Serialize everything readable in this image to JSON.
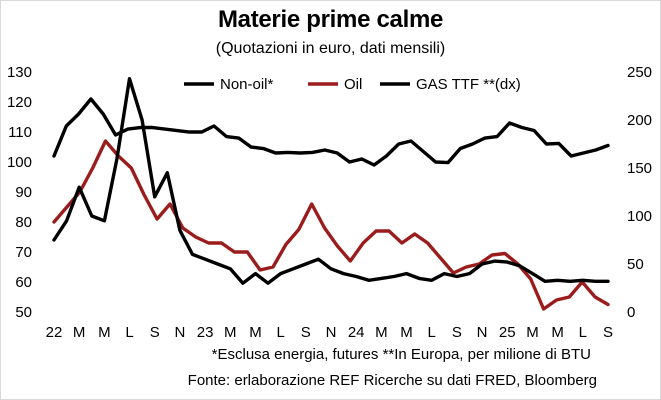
{
  "title": "Materie prime calme",
  "subtitle": "(Quotazioni in euro, dati mensili)",
  "notes": {
    "line1": "*Esclusa energia, futures **In Europa, per milione di BTU",
    "line2": "Fonte: erlaborazione REF Ricerche su dati FRED, Bloomberg"
  },
  "chart_data": {
    "type": "line",
    "x_tick_labels": [
      "22",
      "M",
      "M",
      "L",
      "S",
      "N",
      "23",
      "M",
      "M",
      "L",
      "S",
      "N",
      "24",
      "M",
      "M",
      "L",
      "S",
      "N",
      "25",
      "M",
      "M",
      "L",
      "S"
    ],
    "left_axis": {
      "min": 50,
      "max": 130,
      "ticks": [
        50,
        60,
        70,
        80,
        90,
        100,
        110,
        120,
        130
      ]
    },
    "right_axis": {
      "min": 0,
      "max": 250,
      "ticks": [
        0,
        50,
        100,
        150,
        200,
        250
      ]
    },
    "legend_position": "top",
    "series": [
      {
        "name": "Non-oil*",
        "axis": "left",
        "color": "#000000",
        "values": [
          102,
          112,
          116,
          121,
          116,
          109,
          111,
          111.5,
          111.5,
          111,
          110.5,
          110,
          110,
          112,
          108.5,
          108,
          105,
          104.5,
          103,
          103.2,
          103,
          103.2,
          104,
          103,
          100,
          101,
          99,
          102,
          106,
          107,
          103.5,
          100,
          99.8,
          104.5,
          106,
          108,
          108.5,
          113,
          111.5,
          110.5,
          106,
          106.2,
          102,
          103,
          104,
          105.5
        ]
      },
      {
        "name": "Oil",
        "axis": "left",
        "color": "#9b1c1c",
        "values": [
          80,
          85,
          90,
          98,
          107,
          102,
          98,
          89,
          81,
          86,
          78,
          75,
          73,
          73,
          70,
          70,
          64,
          65,
          72.5,
          77.5,
          86,
          78,
          72,
          67,
          73,
          77,
          77,
          73,
          76,
          73,
          68,
          63,
          65,
          66,
          69,
          69.5,
          66,
          61,
          51,
          54,
          55,
          60,
          55,
          52.5
        ]
      },
      {
        "name": "GAS TTF **(dx)",
        "axis": "right",
        "color": "#000000",
        "values": [
          75,
          95,
          130,
          100,
          95,
          160,
          243,
          200,
          120,
          145,
          85,
          60,
          55,
          50,
          45,
          30,
          40,
          30,
          40,
          45,
          50,
          55,
          45,
          40,
          37,
          33,
          35,
          37,
          40,
          35,
          33,
          40,
          37,
          40,
          50,
          53,
          52,
          48,
          40,
          32,
          33,
          32,
          33,
          32,
          32
        ]
      }
    ]
  }
}
